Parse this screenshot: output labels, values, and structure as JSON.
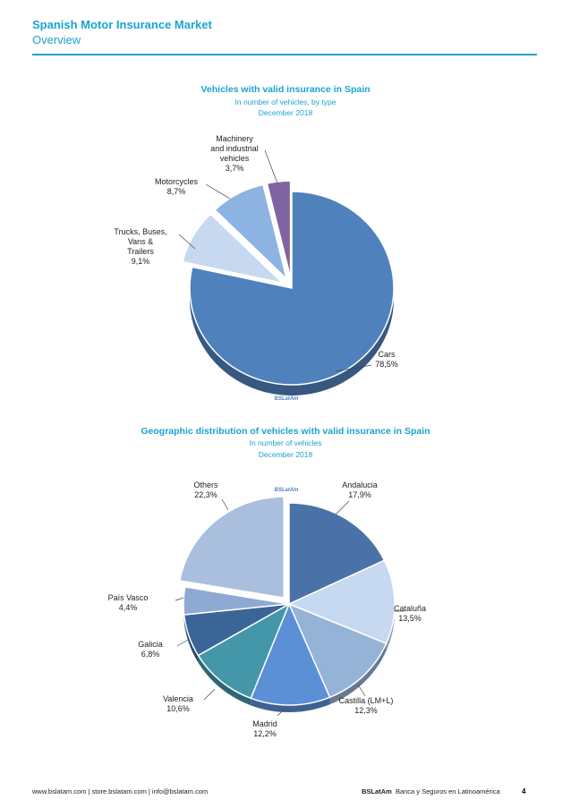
{
  "header": {
    "title": "Spanish Motor Insurance Market",
    "subtitle": "Overview"
  },
  "chart1": {
    "title": "Vehicles with valid insurance in Spain",
    "subtitle1": "In number of vehicles, by type",
    "subtitle2": "December 2018",
    "watermark": "BSLatAm"
  },
  "chart2": {
    "title": "Geographic distribution of vehicles with valid insurance in Spain",
    "subtitle1": "In number of vehicles",
    "subtitle2": "December 2018",
    "watermark": "BSLatAm"
  },
  "chart_data": [
    {
      "type": "pie",
      "slices": [
        {
          "label": [
            "Cars"
          ],
          "value": 78.5,
          "display": "78,5%",
          "color": "#4f81bd"
        },
        {
          "label": [
            "Trucks, Buses,",
            "Vans &",
            "Trailers"
          ],
          "value": 9.1,
          "display": "9,1%",
          "color": "#c6d9f1"
        },
        {
          "label": [
            "Motorcycles"
          ],
          "value": 8.7,
          "display": "8,7%",
          "color": "#8db3e2"
        },
        {
          "label": [
            "Machinery",
            "and industrial",
            "vehicles"
          ],
          "value": 3.7,
          "display": "3,7%",
          "color": "#8064a2"
        }
      ]
    },
    {
      "type": "pie",
      "slices": [
        {
          "label": [
            "Andalucia"
          ],
          "value": 17.9,
          "display": "17,9%",
          "color": "#4a72a8"
        },
        {
          "label": [
            "Cataluña"
          ],
          "value": 13.5,
          "display": "13,5%",
          "color": "#c6d9f1"
        },
        {
          "label": [
            "Castilla (LM+L)"
          ],
          "value": 12.3,
          "display": "12,3%",
          "color": "#95b3d7"
        },
        {
          "label": [
            "Madrid"
          ],
          "value": 12.2,
          "display": "12,2%",
          "color": "#5b8fd6"
        },
        {
          "label": [
            "Valencia"
          ],
          "value": 10.6,
          "display": "10,6%",
          "color": "#4397a8"
        },
        {
          "label": [
            "Galicia"
          ],
          "value": 6.8,
          "display": "6,8%",
          "color": "#3b6596"
        },
        {
          "label": [
            "País Vasco"
          ],
          "value": 4.4,
          "display": "4,4%",
          "color": "#8ea9d4"
        },
        {
          "label": [
            "Others"
          ],
          "value": 22.3,
          "display": "22,3%",
          "color": "#a9bfdd"
        }
      ]
    }
  ],
  "footer": {
    "links": "www.bslatam.com | store.bslatam.com | info@bslatam.com",
    "brand": "BSLatAm",
    "tagline": "Banca y Seguros en Latinoamérica",
    "page": "4"
  }
}
